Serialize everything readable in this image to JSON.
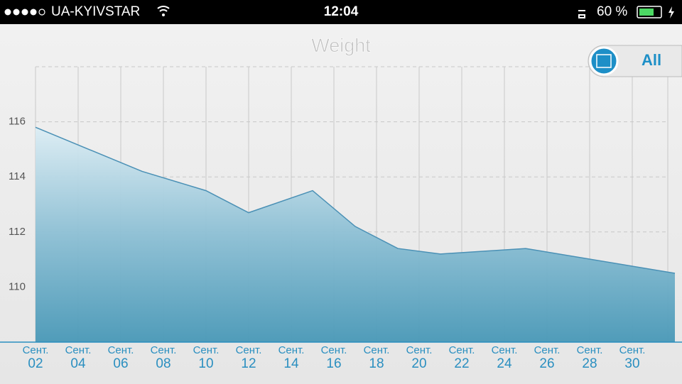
{
  "status_bar": {
    "carrier": "UA-KYIVSTAR",
    "time": "12:04",
    "battery": "60 %"
  },
  "button": {
    "label": "All"
  },
  "chart_data": {
    "type": "area",
    "title": "Weight",
    "x": [
      2,
      7,
      10,
      12,
      15,
      17,
      19,
      21,
      25,
      32
    ],
    "series": [
      {
        "name": "Weight",
        "color": "#4a90b5",
        "values": [
          115.8,
          114.2,
          113.5,
          112.7,
          113.5,
          112.2,
          111.4,
          111.2,
          111.4,
          110.5
        ]
      }
    ],
    "xlim": [
      2,
      32
    ],
    "xticks": [
      {
        "value": 2,
        "label": "Сент. 02"
      },
      {
        "value": 4,
        "label": "Сент. 04"
      },
      {
        "value": 6,
        "label": "Сент. 06"
      },
      {
        "value": 8,
        "label": "Сент. 08"
      },
      {
        "value": 10,
        "label": "Сент. 10"
      },
      {
        "value": 12,
        "label": "Сент. 12"
      },
      {
        "value": 14,
        "label": "Сент. 14"
      },
      {
        "value": 16,
        "label": "Сент. 16"
      },
      {
        "value": 18,
        "label": "Сент. 18"
      },
      {
        "value": 20,
        "label": "Сент. 20"
      },
      {
        "value": 22,
        "label": "Сент. 22"
      },
      {
        "value": 24,
        "label": "Сент. 24"
      },
      {
        "value": 26,
        "label": "Сент. 26"
      },
      {
        "value": 28,
        "label": "Сент. 28"
      },
      {
        "value": 30,
        "label": "Сент. 30"
      }
    ],
    "ylim": [
      108,
      118
    ],
    "yticks": [
      110,
      112,
      114,
      116
    ],
    "grid": true
  }
}
